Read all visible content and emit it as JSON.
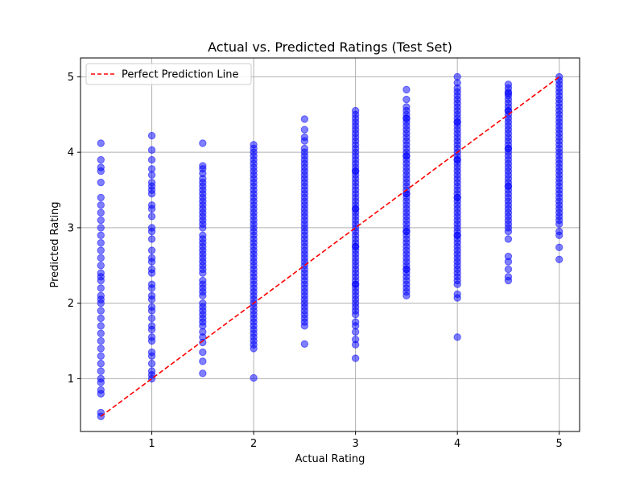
{
  "chart_data": {
    "type": "scatter",
    "title": "Actual vs. Predicted Ratings (Test Set)",
    "xlabel": "Actual Rating",
    "ylabel": "Predicted Rating",
    "xlim": [
      0.3,
      5.2
    ],
    "ylim": [
      0.3,
      5.25
    ],
    "x_ticks": [
      1,
      2,
      3,
      4,
      5
    ],
    "y_ticks": [
      1,
      2,
      3,
      4,
      5
    ],
    "grid": true,
    "legend": {
      "position": "top-left",
      "entries": [
        "Perfect Prediction Line"
      ]
    },
    "colors": {
      "points": "#0000ff",
      "line": "#ff0000",
      "grid": "#b0b0b0"
    },
    "reference_line": {
      "name": "Perfect Prediction Line",
      "style": "dashed",
      "x": [
        0.5,
        5.0
      ],
      "y": [
        0.5,
        5.0
      ]
    },
    "series": [
      {
        "x": [
          0.5,
          0.5,
          0.5,
          0.5,
          0.5,
          0.5,
          0.5,
          0.5,
          0.5,
          0.5,
          0.5,
          0.5,
          0.5,
          0.5,
          0.5,
          0.5,
          0.5,
          0.5,
          0.5,
          0.5,
          0.5,
          0.5,
          0.5,
          0.5,
          0.5,
          0.5,
          0.5,
          0.5,
          0.5,
          0.5,
          0.5,
          0.5,
          0.5,
          0.5,
          0.5,
          0.5,
          0.5,
          1.0,
          1.0,
          1.0,
          1.0,
          1.0,
          1.0,
          1.0,
          1.0,
          1.0,
          1.0,
          1.0,
          1.0,
          1.0,
          1.0,
          1.0,
          1.0,
          1.0,
          1.0,
          1.0,
          1.0,
          1.0,
          1.0,
          1.0,
          1.0,
          1.0,
          1.0,
          1.0,
          1.0,
          1.0,
          1.0,
          1.0,
          1.0,
          1.0,
          1.0,
          1.0,
          1.0,
          1.0,
          1.5,
          1.5,
          1.5,
          1.5,
          1.5,
          1.5,
          1.5,
          1.5,
          1.5,
          1.5,
          1.5,
          1.5,
          1.5,
          1.5,
          1.5,
          1.5,
          1.5,
          1.5,
          1.5,
          1.5,
          1.5,
          1.5,
          1.5,
          1.5,
          1.5,
          1.5,
          1.5,
          1.5,
          1.5,
          1.5,
          1.5,
          1.5,
          1.5,
          1.5,
          1.5,
          1.5,
          1.5,
          1.5,
          1.5,
          1.5,
          1.5,
          1.5,
          1.5,
          1.5,
          1.5,
          1.5,
          1.5,
          2.0,
          2.0,
          2.0,
          2.0,
          2.0,
          2.0,
          2.0,
          2.0,
          2.0,
          2.0,
          2.0,
          2.0,
          2.0,
          2.0,
          2.0,
          2.0,
          2.0,
          2.0,
          2.0,
          2.0,
          2.0,
          2.0,
          2.0,
          2.0,
          2.0,
          2.0,
          2.0,
          2.0,
          2.0,
          2.0,
          2.0,
          2.0,
          2.0,
          2.0,
          2.0,
          2.0,
          2.0,
          2.0,
          2.0,
          2.0,
          2.0,
          2.0,
          2.0,
          2.0,
          2.0,
          2.0,
          2.0,
          2.0,
          2.0,
          2.0,
          2.0,
          2.0,
          2.0,
          2.0,
          2.0,
          2.0,
          2.5,
          2.5,
          2.5,
          2.5,
          2.5,
          2.5,
          2.5,
          2.5,
          2.5,
          2.5,
          2.5,
          2.5,
          2.5,
          2.5,
          2.5,
          2.5,
          2.5,
          2.5,
          2.5,
          2.5,
          2.5,
          2.5,
          2.5,
          2.5,
          2.5,
          2.5,
          2.5,
          2.5,
          2.5,
          2.5,
          2.5,
          2.5,
          2.5,
          2.5,
          2.5,
          2.5,
          2.5,
          2.5,
          2.5,
          2.5,
          2.5,
          2.5,
          2.5,
          2.5,
          2.5,
          2.5,
          2.5,
          2.5,
          2.5,
          2.5,
          2.5,
          2.5,
          2.5,
          3.0,
          3.0,
          3.0,
          3.0,
          3.0,
          3.0,
          3.0,
          3.0,
          3.0,
          3.0,
          3.0,
          3.0,
          3.0,
          3.0,
          3.0,
          3.0,
          3.0,
          3.0,
          3.0,
          3.0,
          3.0,
          3.0,
          3.0,
          3.0,
          3.0,
          3.0,
          3.0,
          3.0,
          3.0,
          3.0,
          3.0,
          3.0,
          3.0,
          3.0,
          3.0,
          3.0,
          3.0,
          3.0,
          3.0,
          3.0,
          3.0,
          3.0,
          3.0,
          3.0,
          3.0,
          3.0,
          3.0,
          3.0,
          3.0,
          3.0,
          3.0,
          3.0,
          3.0,
          3.0,
          3.0,
          3.0,
          3.0,
          3.0,
          3.0,
          3.0,
          3.0,
          3.0,
          3.0,
          3.0,
          3.0,
          3.5,
          3.5,
          3.5,
          3.5,
          3.5,
          3.5,
          3.5,
          3.5,
          3.5,
          3.5,
          3.5,
          3.5,
          3.5,
          3.5,
          3.5,
          3.5,
          3.5,
          3.5,
          3.5,
          3.5,
          3.5,
          3.5,
          3.5,
          3.5,
          3.5,
          3.5,
          3.5,
          3.5,
          3.5,
          3.5,
          3.5,
          3.5,
          3.5,
          3.5,
          3.5,
          3.5,
          3.5,
          3.5,
          3.5,
          3.5,
          3.5,
          3.5,
          3.5,
          3.5,
          3.5,
          3.5,
          3.5,
          3.5,
          3.5,
          3.5,
          3.5,
          3.5,
          3.5,
          3.5,
          3.5,
          3.5,
          3.5,
          3.5,
          4.0,
          4.0,
          4.0,
          4.0,
          4.0,
          4.0,
          4.0,
          4.0,
          4.0,
          4.0,
          4.0,
          4.0,
          4.0,
          4.0,
          4.0,
          4.0,
          4.0,
          4.0,
          4.0,
          4.0,
          4.0,
          4.0,
          4.0,
          4.0,
          4.0,
          4.0,
          4.0,
          4.0,
          4.0,
          4.0,
          4.0,
          4.0,
          4.0,
          4.0,
          4.0,
          4.0,
          4.0,
          4.0,
          4.0,
          4.0,
          4.0,
          4.0,
          4.0,
          4.0,
          4.0,
          4.0,
          4.0,
          4.0,
          4.0,
          4.0,
          4.0,
          4.0,
          4.0,
          4.0,
          4.0,
          4.0,
          4.0,
          4.0,
          4.0,
          4.0,
          4.0,
          4.0,
          4.5,
          4.5,
          4.5,
          4.5,
          4.5,
          4.5,
          4.5,
          4.5,
          4.5,
          4.5,
          4.5,
          4.5,
          4.5,
          4.5,
          4.5,
          4.5,
          4.5,
          4.5,
          4.5,
          4.5,
          4.5,
          4.5,
          4.5,
          4.5,
          4.5,
          4.5,
          4.5,
          4.5,
          4.5,
          4.5,
          4.5,
          4.5,
          4.5,
          4.5,
          4.5,
          4.5,
          4.5,
          4.5,
          4.5,
          4.5,
          4.5,
          4.5,
          4.5,
          4.5,
          4.5,
          4.5,
          4.5,
          4.5,
          4.5,
          4.5,
          5.0,
          5.0,
          5.0,
          5.0,
          5.0,
          5.0,
          5.0,
          5.0,
          5.0,
          5.0,
          5.0,
          5.0,
          5.0,
          5.0,
          5.0,
          5.0,
          5.0,
          5.0,
          5.0,
          5.0,
          5.0,
          5.0,
          5.0,
          5.0,
          5.0,
          5.0,
          5.0,
          5.0,
          5.0,
          5.0,
          5.0,
          5.0,
          5.0,
          5.0,
          5.0,
          5.0,
          5.0,
          5.0,
          5.0,
          5.0,
          5.0,
          5.0,
          5.0,
          5.0
        ],
        "y": [
          0.5,
          0.55,
          0.8,
          0.85,
          0.95,
          1.0,
          1.1,
          1.2,
          1.3,
          1.4,
          1.5,
          1.6,
          1.7,
          1.8,
          1.9,
          2.0,
          2.1,
          2.2,
          2.3,
          2.4,
          2.5,
          2.6,
          2.7,
          2.8,
          2.9,
          3.0,
          3.1,
          3.2,
          3.3,
          3.4,
          3.6,
          3.75,
          3.8,
          3.9,
          4.12,
          2.05,
          2.35,
          1.0,
          1.05,
          1.2,
          1.35,
          1.5,
          1.65,
          1.8,
          1.95,
          2.1,
          2.25,
          2.4,
          2.55,
          2.7,
          2.85,
          3.0,
          3.15,
          3.3,
          3.45,
          3.6,
          3.7,
          3.78,
          3.9,
          4.03,
          4.22,
          1.1,
          1.3,
          1.55,
          1.7,
          1.9,
          2.05,
          2.2,
          2.45,
          2.6,
          2.95,
          3.25,
          3.5,
          3.55,
          1.07,
          1.23,
          1.35,
          1.48,
          1.55,
          1.62,
          1.7,
          1.8,
          1.9,
          2.0,
          2.1,
          2.2,
          2.3,
          2.4,
          2.5,
          2.6,
          2.7,
          2.8,
          2.9,
          3.0,
          3.1,
          3.2,
          3.3,
          3.4,
          3.5,
          3.6,
          3.65,
          3.72,
          3.78,
          3.82,
          4.12,
          1.85,
          1.95,
          2.15,
          2.25,
          2.45,
          2.55,
          2.75,
          2.85,
          3.05,
          3.15,
          3.35,
          3.45,
          3.55,
          1.75,
          2.65,
          3.25,
          1.01,
          1.4,
          1.45,
          1.5,
          1.55,
          1.6,
          1.7,
          1.8,
          1.9,
          2.0,
          2.1,
          2.2,
          2.3,
          2.4,
          2.5,
          2.6,
          2.7,
          2.8,
          2.9,
          3.0,
          3.1,
          3.2,
          3.3,
          3.4,
          3.5,
          3.6,
          3.7,
          3.8,
          3.9,
          4.0,
          4.05,
          4.1,
          1.65,
          1.75,
          1.85,
          1.95,
          2.05,
          2.15,
          2.25,
          2.35,
          2.45,
          2.55,
          2.65,
          2.75,
          2.85,
          2.95,
          3.05,
          3.15,
          3.25,
          3.35,
          3.45,
          3.55,
          3.65,
          3.75,
          3.85,
          3.95,
          1.46,
          1.7,
          1.75,
          1.85,
          1.95,
          2.05,
          2.15,
          2.25,
          2.35,
          2.45,
          2.55,
          2.65,
          2.75,
          2.85,
          2.95,
          3.05,
          3.15,
          3.25,
          3.35,
          3.45,
          3.55,
          3.65,
          3.75,
          3.85,
          3.95,
          4.05,
          4.15,
          4.2,
          4.3,
          4.44,
          1.8,
          1.9,
          2.0,
          2.1,
          2.2,
          2.3,
          2.4,
          2.5,
          2.6,
          2.7,
          2.8,
          2.9,
          3.0,
          3.1,
          3.2,
          3.3,
          3.4,
          3.5,
          3.6,
          3.7,
          3.8,
          3.9,
          4.0,
          1.27,
          1.52,
          1.62,
          1.75,
          1.85,
          1.95,
          2.05,
          2.15,
          2.25,
          2.35,
          2.45,
          2.55,
          2.65,
          2.75,
          2.85,
          2.95,
          3.05,
          3.15,
          3.25,
          3.35,
          3.45,
          3.55,
          3.65,
          3.75,
          3.85,
          3.95,
          4.05,
          4.15,
          4.25,
          4.35,
          4.45,
          4.5,
          4.55,
          1.9,
          2.0,
          2.1,
          2.2,
          2.3,
          2.4,
          2.5,
          2.6,
          2.7,
          2.8,
          2.9,
          3.0,
          3.1,
          3.2,
          3.3,
          3.4,
          3.5,
          3.6,
          3.7,
          3.8,
          3.9,
          4.0,
          4.1,
          4.2,
          4.3,
          4.4,
          1.45,
          1.7,
          2.25,
          2.75,
          3.25,
          3.75,
          2.1,
          2.15,
          2.25,
          2.35,
          2.45,
          2.55,
          2.65,
          2.75,
          2.85,
          2.95,
          3.05,
          3.15,
          3.25,
          3.35,
          3.45,
          3.55,
          3.65,
          3.75,
          3.85,
          3.95,
          4.05,
          4.15,
          4.25,
          4.35,
          4.45,
          4.55,
          4.6,
          4.7,
          4.83,
          2.2,
          2.3,
          2.4,
          2.5,
          2.6,
          2.7,
          2.8,
          2.9,
          3.0,
          3.1,
          3.2,
          3.3,
          3.4,
          3.5,
          3.6,
          3.7,
          3.8,
          3.9,
          4.0,
          4.1,
          4.2,
          4.3,
          4.4,
          4.5,
          2.45,
          2.95,
          3.45,
          3.95,
          4.45,
          1.55,
          2.07,
          2.12,
          2.25,
          2.35,
          2.45,
          2.55,
          2.65,
          2.75,
          2.85,
          2.95,
          3.05,
          3.15,
          3.25,
          3.35,
          3.45,
          3.55,
          3.65,
          3.75,
          3.85,
          3.95,
          4.05,
          4.15,
          4.25,
          4.35,
          4.45,
          4.55,
          4.65,
          4.75,
          4.85,
          4.92,
          5.0,
          2.3,
          2.4,
          2.5,
          2.6,
          2.7,
          2.8,
          2.9,
          3.0,
          3.1,
          3.2,
          3.3,
          3.4,
          3.5,
          3.6,
          3.7,
          3.8,
          3.9,
          4.0,
          4.1,
          4.2,
          4.3,
          4.4,
          4.5,
          4.6,
          4.7,
          4.8,
          2.9,
          3.4,
          3.9,
          4.4,
          2.3,
          2.35,
          2.45,
          2.55,
          2.62,
          2.85,
          2.95,
          3.05,
          3.15,
          3.25,
          3.35,
          3.45,
          3.55,
          3.65,
          3.75,
          3.85,
          3.95,
          4.05,
          4.15,
          4.25,
          4.35,
          4.45,
          4.55,
          4.65,
          4.75,
          4.85,
          4.9,
          3.0,
          3.1,
          3.2,
          3.3,
          3.4,
          3.5,
          3.6,
          3.7,
          3.8,
          3.9,
          4.0,
          4.1,
          4.2,
          4.3,
          4.4,
          4.5,
          4.6,
          4.7,
          4.8,
          3.55,
          4.05,
          4.55,
          4.78,
          2.58,
          2.74,
          2.9,
          2.95,
          3.05,
          3.15,
          3.25,
          3.35,
          3.45,
          3.55,
          3.65,
          3.75,
          3.85,
          3.95,
          4.05,
          4.15,
          4.25,
          4.35,
          4.45,
          4.55,
          4.65,
          4.75,
          4.85,
          4.95,
          5.0,
          3.1,
          3.2,
          3.3,
          3.4,
          3.5,
          3.6,
          3.7,
          3.8,
          3.9,
          4.0,
          4.1,
          4.2,
          4.3,
          4.4,
          4.5,
          4.6,
          4.7,
          4.8,
          4.9
        ]
      }
    ]
  }
}
